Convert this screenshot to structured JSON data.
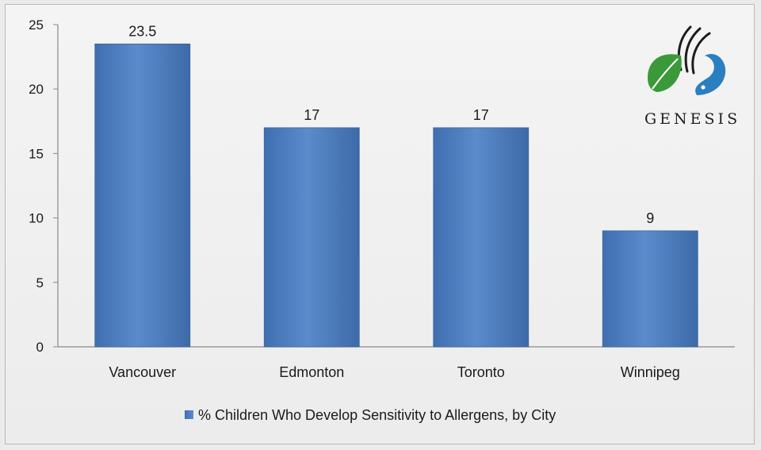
{
  "chart_data": {
    "type": "bar",
    "categories": [
      "Vancouver",
      "Edmonton",
      "Toronto",
      "Winnipeg"
    ],
    "series": [
      {
        "name": "% Children Who Develop Sensitivity to Allergens, by City",
        "values": [
          23.5,
          17,
          17,
          9
        ],
        "color": "#4f81bd"
      }
    ],
    "data_labels": [
      "23.5",
      "17",
      "17",
      "9"
    ],
    "yticks": [
      "0",
      "5",
      "10",
      "15",
      "20",
      "25"
    ],
    "ylim": [
      0,
      25
    ],
    "title": "",
    "xlabel": "",
    "ylabel": "",
    "grid": false,
    "legend_position": "bottom"
  },
  "logo": {
    "text": "GENESIS",
    "leaf_color": "#3a9a3a",
    "drop_color": "#2a7fc0"
  }
}
